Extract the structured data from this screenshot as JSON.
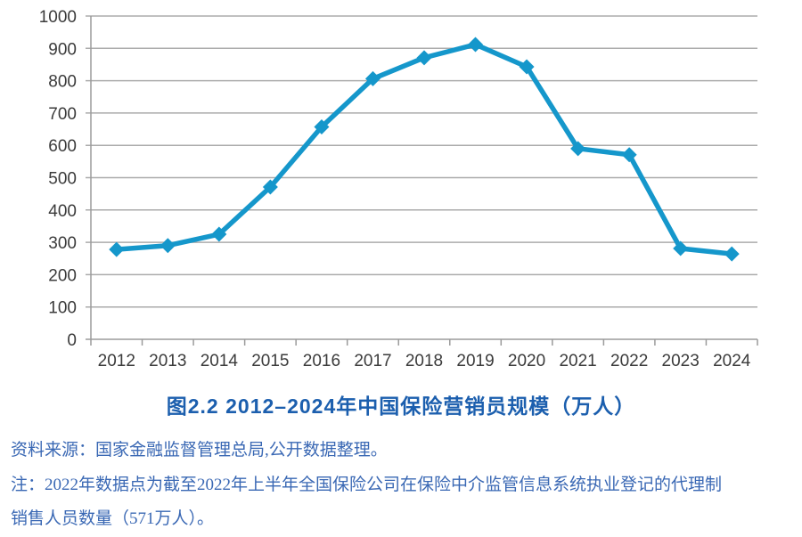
{
  "chart_data": {
    "type": "line",
    "title": "图2.2  2012–2024年中国保险营销员规模（万人）",
    "categories": [
      "2012",
      "2013",
      "2014",
      "2015",
      "2016",
      "2017",
      "2018",
      "2019",
      "2020",
      "2021",
      "2022",
      "2023",
      "2024"
    ],
    "series": [
      {
        "name": "中国保险营销员规模(万人)",
        "values": [
          278,
          290,
          325,
          471,
          657,
          806,
          871,
          912,
          843,
          590,
          571,
          281,
          264
        ]
      }
    ],
    "xlabel": "",
    "ylabel": "",
    "ylim": [
      0,
      1000
    ],
    "ytick_step": 100,
    "yticks": [
      0,
      100,
      200,
      300,
      400,
      500,
      600,
      700,
      800,
      900,
      1000
    ],
    "grid": true,
    "legend_position": "none",
    "marker": "diamond",
    "line_color": "#1597cb"
  },
  "title": {
    "text": "图2.2  2012–2024年中国保险营销员规模（万人）"
  },
  "notes": {
    "source": "资料来源：国家金融监督管理总局,公开数据整理。",
    "note_line1": "注：2022年数据点为截至2022年上半年全国保险公司在保险中介监管信息系统执业登记的代理制",
    "note_line2": "销售人员数量（571万人）。"
  },
  "colors": {
    "line": "#1597cb",
    "gridline": "#ababab",
    "axis": "#9b9b9b",
    "tick_label": "#3b3b3b",
    "title_blue": "#1c5fae",
    "note_blue": "#3a68b4"
  }
}
